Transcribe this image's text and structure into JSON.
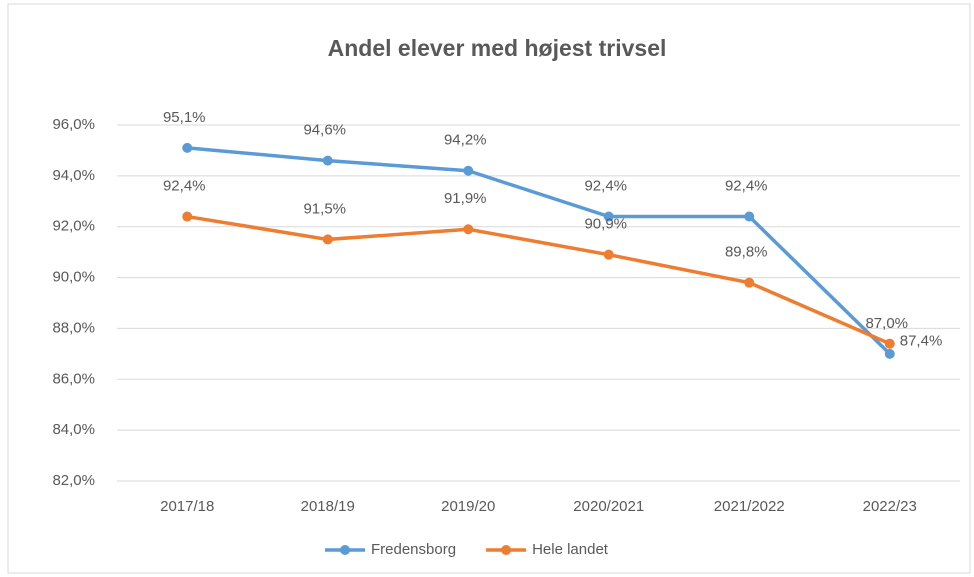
{
  "chart_data": {
    "type": "line",
    "title": "Andel elever med højest trivsel",
    "categories": [
      "2017/18",
      "2018/19",
      "2019/20",
      "2020/2021",
      "2021/2022",
      "2022/23"
    ],
    "series": [
      {
        "name": "Fredensborg",
        "color": "#5b9bd5",
        "values": [
          95.1,
          94.6,
          94.2,
          92.4,
          92.4,
          87.0
        ],
        "value_labels": [
          "95,1%",
          "94,6%",
          "94,2%",
          "92,4%",
          "92,4%",
          "87,0%"
        ]
      },
      {
        "name": "Hele landet",
        "color": "#ed7d31",
        "values": [
          92.4,
          91.5,
          91.9,
          90.9,
          89.8,
          87.4
        ],
        "value_labels": [
          "92,4%",
          "91,5%",
          "91,9%",
          "90,9%",
          "89,8%",
          "87,4%"
        ]
      }
    ],
    "ylim": [
      82,
      96
    ],
    "yticks": [
      {
        "value": 82,
        "label": "82,0%"
      },
      {
        "value": 84,
        "label": "84,0%"
      },
      {
        "value": 86,
        "label": "86,0%"
      },
      {
        "value": 88,
        "label": "88,0%"
      },
      {
        "value": 90,
        "label": "90,0%"
      },
      {
        "value": 92,
        "label": "92,0%"
      },
      {
        "value": 94,
        "label": "94,0%"
      },
      {
        "value": 96,
        "label": "96,0%"
      }
    ],
    "grid": true,
    "legend": "bottom"
  }
}
